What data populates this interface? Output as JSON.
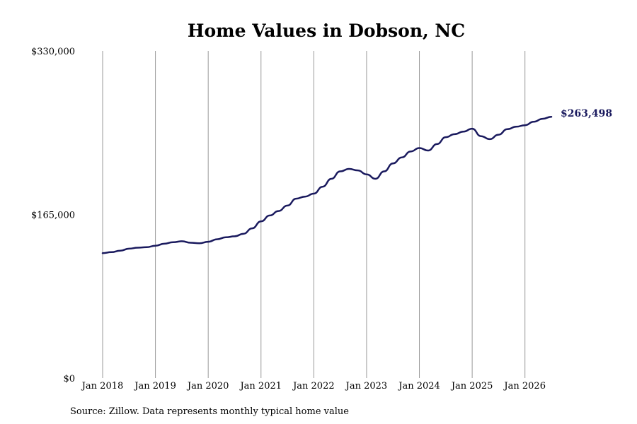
{
  "chart_data": {
    "type": "line",
    "title": "Home Values in Dobson, NC",
    "xlabel": "",
    "ylabel": "",
    "x_tick_labels": [
      "Jan 2018",
      "Jan 2019",
      "Jan 2020",
      "Jan 2021",
      "Jan 2022",
      "Jan 2023",
      "Jan 2024",
      "Jan 2025",
      "Jan 2026"
    ],
    "y_tick_labels": [
      "$330,000",
      "$165,000",
      "$0"
    ],
    "y_ticks": [
      330000,
      165000,
      0
    ],
    "ylim": [
      0,
      330000
    ],
    "xlim": [
      "2018-01",
      "2026-07"
    ],
    "grid": "vertical lines at each January",
    "line_color": "#1a1a5e",
    "end_label": "$263,498",
    "series": [
      {
        "values": [
          [
            "2018-01",
            126000
          ],
          [
            "2018-03",
            127000
          ],
          [
            "2018-05",
            128500
          ],
          [
            "2018-07",
            130500
          ],
          [
            "2018-09",
            131500
          ],
          [
            "2018-11",
            132000
          ],
          [
            "2019-01",
            133500
          ],
          [
            "2019-03",
            135500
          ],
          [
            "2019-05",
            137000
          ],
          [
            "2019-07",
            138000
          ],
          [
            "2019-09",
            136500
          ],
          [
            "2019-11",
            136000
          ],
          [
            "2020-01",
            137500
          ],
          [
            "2020-03",
            140000
          ],
          [
            "2020-05",
            142000
          ],
          [
            "2020-07",
            143000
          ],
          [
            "2020-09",
            145500
          ],
          [
            "2020-11",
            151000
          ],
          [
            "2021-01",
            158000
          ],
          [
            "2021-03",
            164000
          ],
          [
            "2021-05",
            168500
          ],
          [
            "2021-07",
            174000
          ],
          [
            "2021-09",
            181000
          ],
          [
            "2021-11",
            183000
          ],
          [
            "2022-01",
            186000
          ],
          [
            "2022-03",
            193000
          ],
          [
            "2022-05",
            201000
          ],
          [
            "2022-07",
            208500
          ],
          [
            "2022-09",
            211000
          ],
          [
            "2022-11",
            209500
          ],
          [
            "2023-01",
            205500
          ],
          [
            "2023-03",
            201000
          ],
          [
            "2023-05",
            208500
          ],
          [
            "2023-07",
            216500
          ],
          [
            "2023-09",
            222500
          ],
          [
            "2023-11",
            228500
          ],
          [
            "2024-01",
            232000
          ],
          [
            "2024-03",
            229500
          ],
          [
            "2024-05",
            236000
          ],
          [
            "2024-07",
            243000
          ],
          [
            "2024-09",
            246000
          ],
          [
            "2024-11",
            248500
          ],
          [
            "2025-01",
            251500
          ],
          [
            "2025-03",
            244000
          ],
          [
            "2025-05",
            241000
          ],
          [
            "2025-07",
            245500
          ],
          [
            "2025-09",
            251000
          ],
          [
            "2025-11",
            253500
          ],
          [
            "2026-01",
            255000
          ],
          [
            "2026-03",
            258500
          ],
          [
            "2026-05",
            261500
          ],
          [
            "2026-07",
            263498
          ]
        ]
      }
    ]
  },
  "source_note": "Source: Zillow. Data represents monthly typical home value"
}
